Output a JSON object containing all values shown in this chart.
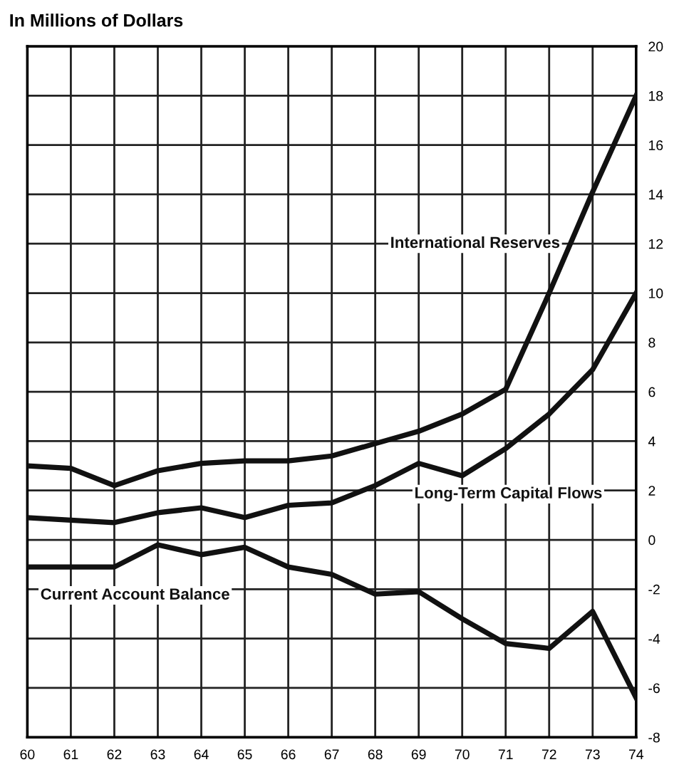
{
  "chart_data": {
    "type": "line",
    "title": "In Millions of Dollars",
    "x": [
      60,
      61,
      62,
      63,
      64,
      65,
      66,
      67,
      68,
      69,
      70,
      71,
      72,
      73,
      74
    ],
    "series": [
      {
        "name": "International Reserves",
        "color": "#111111",
        "values": [
          3.0,
          2.9,
          2.2,
          2.8,
          3.1,
          3.2,
          3.2,
          3.4,
          3.9,
          4.4,
          5.1,
          6.1,
          10.0,
          14.1,
          18.0
        ]
      },
      {
        "name": "Long-Term Capital Flows",
        "color": "#111111",
        "values": [
          0.9,
          0.8,
          0.7,
          1.1,
          1.3,
          0.9,
          1.4,
          1.5,
          2.2,
          3.1,
          2.6,
          3.7,
          5.1,
          6.9,
          10.0
        ]
      },
      {
        "name": "Current Account Balance",
        "color": "#111111",
        "values": [
          -1.1,
          -1.1,
          -1.1,
          -0.2,
          -0.6,
          -0.3,
          -1.1,
          -1.4,
          -2.2,
          -2.1,
          -3.2,
          -4.2,
          -4.4,
          -2.9,
          -6.4
        ]
      }
    ],
    "xlim": [
      60,
      74
    ],
    "xticks": [
      60,
      61,
      62,
      63,
      64,
      65,
      66,
      67,
      68,
      69,
      70,
      71,
      72,
      73,
      74
    ],
    "ylim": [
      -8,
      20
    ],
    "yticks": [
      -8,
      -6,
      -4,
      -2,
      0,
      2,
      4,
      6,
      8,
      10,
      12,
      14,
      16,
      18,
      20
    ],
    "grid": true,
    "legend": false,
    "marker": "none",
    "line_style": "solid"
  }
}
